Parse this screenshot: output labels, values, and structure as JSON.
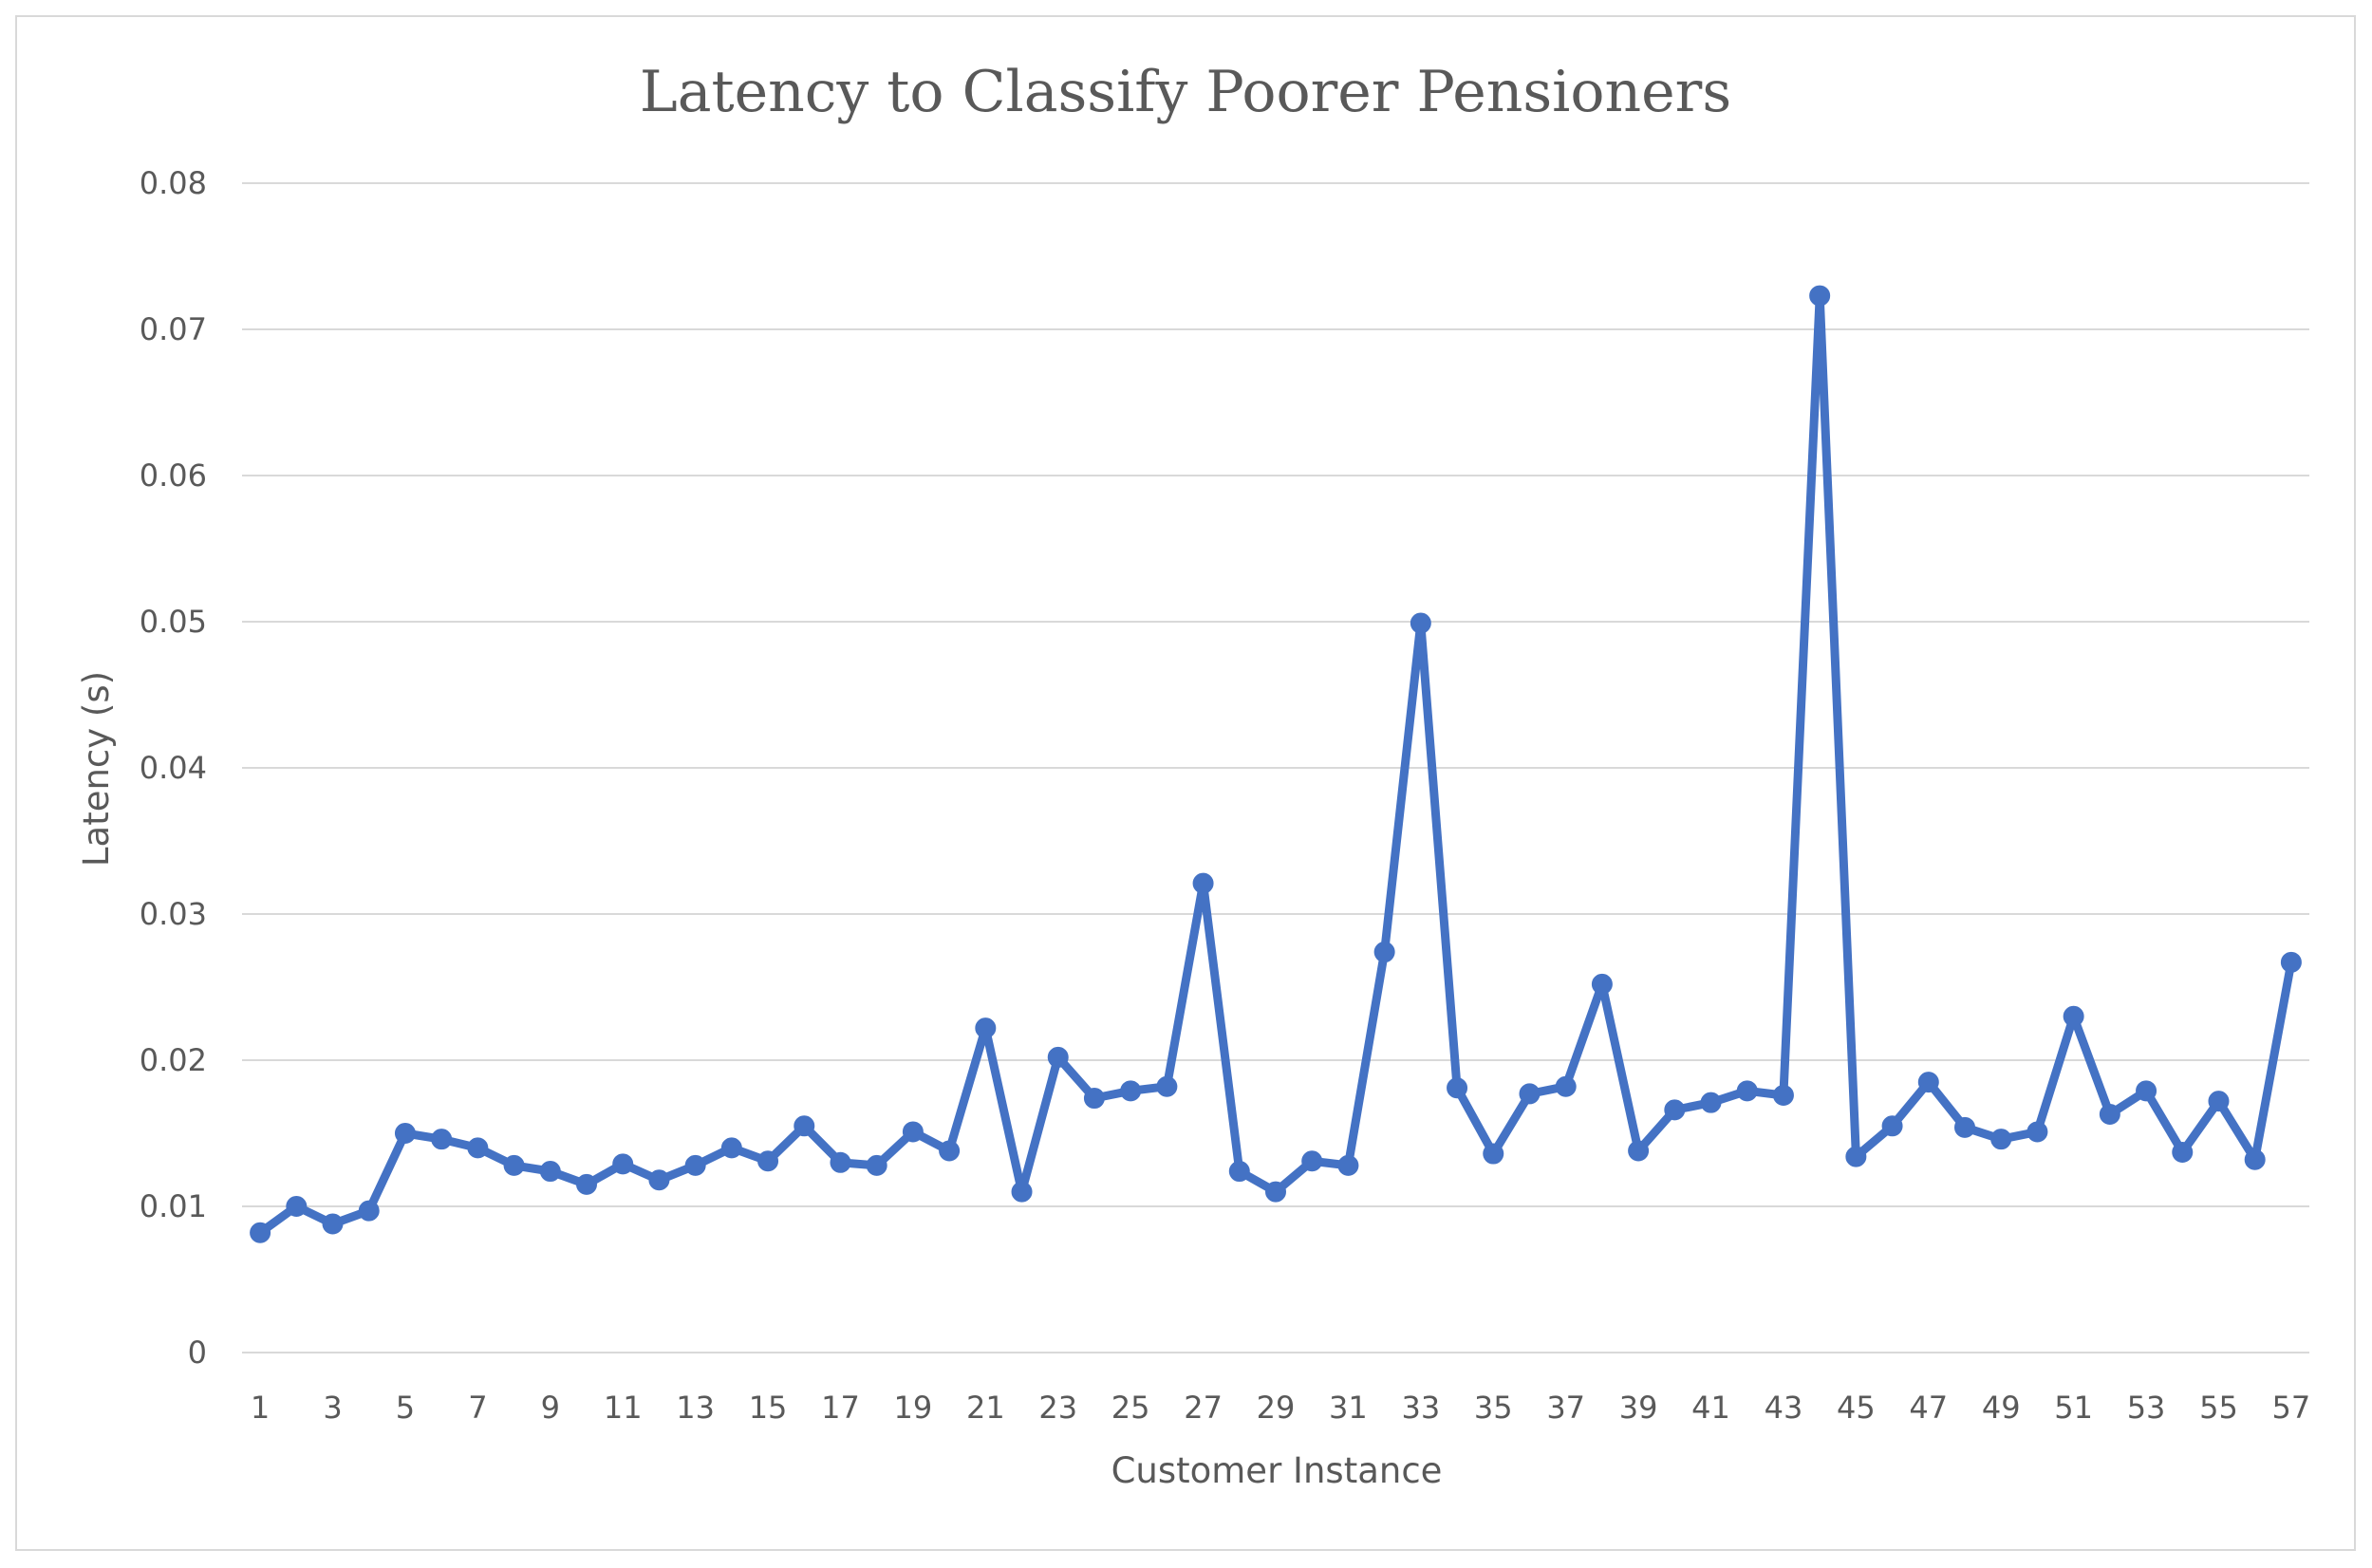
{
  "chart_data": {
    "type": "line",
    "title": "Latency to Classify Poorer Pensioners",
    "xlabel": "Customer Instance",
    "ylabel": "Latency (s)",
    "ylim": [
      0,
      0.08
    ],
    "yticks": [
      "0",
      "0.01",
      "0.02",
      "0.03",
      "0.04",
      "0.05",
      "0.06",
      "0.07",
      "0.08"
    ],
    "grid": "horizontal",
    "legend": "none",
    "color": "#4472c4",
    "x": [
      1,
      2,
      3,
      4,
      5,
      6,
      7,
      8,
      9,
      10,
      11,
      12,
      13,
      14,
      15,
      16,
      17,
      18,
      19,
      20,
      21,
      22,
      23,
      24,
      25,
      26,
      27,
      28,
      29,
      30,
      31,
      32,
      33,
      34,
      35,
      36,
      37,
      38,
      39,
      40,
      41,
      42,
      43,
      44,
      45,
      46,
      47,
      48,
      49,
      50,
      51,
      52,
      53,
      54,
      55,
      56,
      57
    ],
    "x_tick_labels": [
      "1",
      "3",
      "5",
      "7",
      "9",
      "11",
      "13",
      "15",
      "17",
      "19",
      "21",
      "23",
      "25",
      "27",
      "29",
      "31",
      "33",
      "35",
      "37",
      "39",
      "41",
      "43",
      "45",
      "47",
      "49",
      "51",
      "53",
      "55",
      "57"
    ],
    "series": [
      {
        "values": [
          0.0082,
          0.01,
          0.0088,
          0.0097,
          0.015,
          0.0146,
          0.014,
          0.0128,
          0.0124,
          0.0115,
          0.0129,
          0.0118,
          0.0128,
          0.014,
          0.0131,
          0.0155,
          0.013,
          0.0128,
          0.0151,
          0.0138,
          0.0222,
          0.011,
          0.0202,
          0.0174,
          0.0179,
          0.0182,
          0.0321,
          0.0124,
          0.011,
          0.0131,
          0.0128,
          0.0274,
          0.0499,
          0.0181,
          0.0136,
          0.0177,
          0.0182,
          0.0252,
          0.0138,
          0.0166,
          0.0171,
          0.0179,
          0.0176,
          0.0723,
          0.0134,
          0.0155,
          0.0185,
          0.0154,
          0.0146,
          0.0151,
          0.023,
          0.0163,
          0.0179,
          0.0137,
          0.0172,
          0.0132,
          0.0267
        ]
      }
    ]
  }
}
